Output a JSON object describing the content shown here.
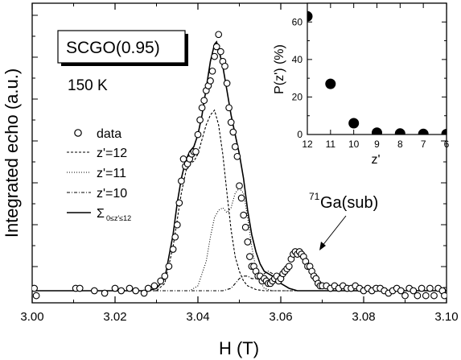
{
  "chart_data": [
    {
      "type": "line",
      "xlabel": "H (T)",
      "ylabel": "Integrated echo (a.u.)",
      "xlim": [
        3.0,
        3.1
      ],
      "ylim": [
        0,
        1
      ],
      "xticks": [
        "3.00",
        "3.02",
        "3.04",
        "3.06",
        "3.08",
        "3.10"
      ],
      "annotations": {
        "sample": "SCGO(0.95)",
        "temperature": "150 K",
        "ga_label": "Ga(sub)",
        "ga_superscript": "71"
      },
      "legend": {
        "position": "left",
        "entries": [
          {
            "label": "data",
            "style": "open-circle"
          },
          {
            "label": "z'=12",
            "style": "dashed"
          },
          {
            "label": "z'=11",
            "style": "dotted"
          },
          {
            "label": "z'=10",
            "style": "dash-dot"
          },
          {
            "label": "Σ",
            "subscript": "0≤z'≤12",
            "style": "solid"
          }
        ]
      },
      "series": [
        {
          "name": "data",
          "x": [
            3.0005,
            3.001,
            3.0105,
            3.0115,
            3.015,
            3.0175,
            3.02,
            3.0215,
            3.0235,
            3.025,
            3.027,
            3.028,
            3.0295,
            3.031,
            3.032,
            3.033,
            3.034,
            3.0345,
            3.035,
            3.0355,
            3.036,
            3.0365,
            3.037,
            3.0375,
            3.038,
            3.0385,
            3.039,
            3.0395,
            3.04,
            3.0405,
            3.041,
            3.0415,
            3.042,
            3.0425,
            3.043,
            3.0435,
            3.044,
            3.0445,
            3.045,
            3.0455,
            3.046,
            3.0465,
            3.047,
            3.0475,
            3.048,
            3.0485,
            3.049,
            3.0495,
            3.05,
            3.0505,
            3.051,
            3.0515,
            3.052,
            3.0525,
            3.053,
            3.0535,
            3.054,
            3.0545,
            3.055,
            3.0555,
            3.056,
            3.0565,
            3.057,
            3.0575,
            3.058,
            3.0585,
            3.059,
            3.0595,
            3.06,
            3.0605,
            3.061,
            3.0615,
            3.062,
            3.0625,
            3.063,
            3.0635,
            3.064,
            3.0645,
            3.065,
            3.0655,
            3.066,
            3.0665,
            3.067,
            3.0675,
            3.068,
            3.0685,
            3.069,
            3.0695,
            3.07,
            3.071,
            3.072,
            3.073,
            3.074,
            3.075,
            3.076,
            3.077,
            3.078,
            3.079,
            3.08,
            3.081,
            3.082,
            3.083,
            3.084,
            3.085,
            3.086,
            3.087,
            3.088,
            3.089,
            3.09,
            3.091,
            3.092,
            3.093,
            3.094,
            3.095,
            3.096,
            3.097,
            3.098,
            3.099,
            3.0995
          ],
          "values": [
            0.01,
            -0.02,
            0.01,
            0.01,
            0.0,
            -0.01,
            0.01,
            0.0,
            0.01,
            0.0,
            -0.01,
            0.01,
            0.02,
            0.04,
            0.06,
            0.1,
            0.17,
            0.22,
            0.27,
            0.36,
            0.45,
            0.54,
            0.51,
            0.52,
            0.54,
            0.56,
            0.57,
            0.57,
            0.64,
            0.7,
            0.75,
            0.78,
            0.82,
            0.84,
            0.86,
            0.9,
            0.96,
            1.0,
            1.05,
            0.98,
            0.94,
            0.92,
            0.85,
            0.75,
            0.69,
            0.65,
            0.59,
            0.55,
            0.43,
            0.38,
            0.31,
            0.26,
            0.2,
            0.14,
            0.1,
            0.1,
            0.08,
            0.06,
            0.06,
            0.04,
            0.05,
            0.04,
            0.03,
            0.03,
            0.04,
            0.05,
            0.06,
            0.04,
            0.05,
            0.07,
            0.08,
            0.09,
            0.1,
            0.13,
            0.15,
            0.16,
            0.15,
            0.16,
            0.15,
            0.14,
            0.12,
            0.1,
            0.1,
            0.08,
            0.06,
            0.05,
            0.03,
            0.02,
            0.02,
            0.02,
            0.01,
            0.02,
            0.01,
            0.02,
            0.01,
            0.01,
            0.02,
            0.01,
            0.0,
            0.01,
            0.0,
            0.01,
            0.01,
            0.0,
            -0.01,
            0.0,
            0.01,
            0.0,
            -0.02,
            0.01,
            0.0,
            -0.02,
            0.01,
            -0.02,
            0.01,
            -0.02,
            0.01,
            0.0,
            -0.02
          ]
        },
        {
          "name": "z'=12",
          "x": [
            3.03,
            3.032,
            3.034,
            3.036,
            3.0375,
            3.039,
            3.04,
            3.041,
            3.042,
            3.043,
            3.044,
            3.045,
            3.046,
            3.047,
            3.048,
            3.049,
            3.05,
            3.051,
            3.052,
            3.054,
            3.056
          ],
          "values": [
            0.0,
            0.03,
            0.18,
            0.4,
            0.52,
            0.53,
            0.56,
            0.62,
            0.68,
            0.72,
            0.74,
            0.68,
            0.56,
            0.4,
            0.25,
            0.14,
            0.08,
            0.04,
            0.02,
            0.005,
            0.0
          ]
        },
        {
          "name": "z'=11",
          "x": [
            3.038,
            3.04,
            3.042,
            3.043,
            3.044,
            3.045,
            3.046,
            3.047,
            3.048,
            3.049,
            3.05,
            3.051,
            3.052,
            3.053,
            3.054,
            3.055,
            3.056,
            3.058
          ],
          "values": [
            0.0,
            0.02,
            0.12,
            0.22,
            0.3,
            0.33,
            0.34,
            0.32,
            0.34,
            0.4,
            0.42,
            0.4,
            0.3,
            0.18,
            0.09,
            0.04,
            0.01,
            0.0
          ]
        },
        {
          "name": "z'=10",
          "x": [
            3.046,
            3.048,
            3.05,
            3.051,
            3.052,
            3.053,
            3.054,
            3.055,
            3.056,
            3.057,
            3.058,
            3.059,
            3.06,
            3.062,
            3.064
          ],
          "values": [
            0.0,
            0.01,
            0.05,
            0.06,
            0.06,
            0.05,
            0.05,
            0.06,
            0.07,
            0.08,
            0.07,
            0.05,
            0.03,
            0.01,
            0.0
          ]
        },
        {
          "name": "Σ",
          "x": [
            3.0,
            3.02,
            3.028,
            3.03,
            3.032,
            3.034,
            3.035,
            3.036,
            3.037,
            3.038,
            3.039,
            3.04,
            3.041,
            3.042,
            3.043,
            3.044,
            3.0445,
            3.045,
            3.046,
            3.047,
            3.048,
            3.049,
            3.05,
            3.051,
            3.052,
            3.053,
            3.054,
            3.055,
            3.056,
            3.058,
            3.06,
            3.062,
            3.064,
            3.07,
            3.1
          ],
          "values": [
            0.0,
            0.0,
            0.0,
            0.01,
            0.05,
            0.23,
            0.36,
            0.46,
            0.53,
            0.57,
            0.59,
            0.64,
            0.72,
            0.83,
            0.94,
            1.01,
            1.02,
            0.99,
            0.92,
            0.82,
            0.72,
            0.64,
            0.56,
            0.46,
            0.33,
            0.23,
            0.16,
            0.11,
            0.08,
            0.06,
            0.03,
            0.01,
            0.0,
            0.0,
            0.0
          ]
        }
      ]
    },
    {
      "type": "scatter",
      "xlabel": "z'",
      "ylabel": "P(z') (%)",
      "xlim": [
        12,
        6
      ],
      "ylim": [
        0,
        70
      ],
      "xticks": [
        "12",
        "11",
        "10",
        "9",
        "8",
        "7",
        "6"
      ],
      "yticks": [
        "0",
        "20",
        "40",
        "60"
      ],
      "x": [
        12,
        11,
        10,
        9,
        8,
        7,
        6
      ],
      "values": [
        63,
        27,
        6,
        1,
        0.5,
        0.3,
        0.2
      ]
    }
  ]
}
